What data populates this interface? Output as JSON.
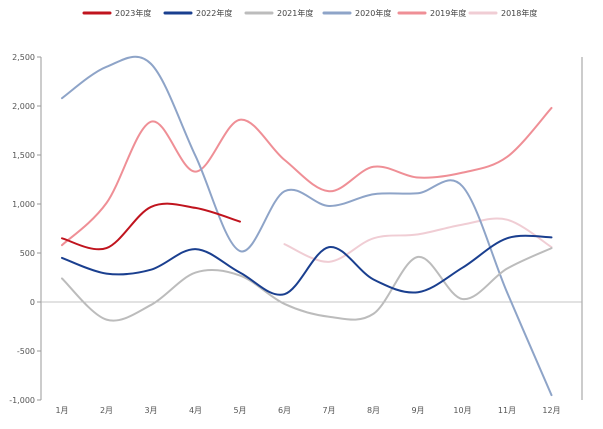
{
  "chart_data": {
    "type": "line",
    "categories": [
      "1月",
      "2月",
      "3月",
      "4月",
      "5月",
      "6月",
      "7月",
      "8月",
      "9月",
      "10月",
      "11月",
      "12月"
    ],
    "ylim": [
      -1000,
      2500
    ],
    "yticks": [
      -1000,
      -500,
      0,
      500,
      1000,
      1500,
      2000,
      2500
    ],
    "ytick_labels": [
      "-1,000",
      "-500",
      "0",
      "500",
      "1,000",
      "1,500",
      "2,000",
      "2,500"
    ],
    "legend_position": "top",
    "grid": false,
    "series": [
      {
        "name": "2023年度",
        "color": "#c0141e",
        "values": [
          650,
          550,
          970,
          960,
          820,
          null,
          null,
          null,
          null,
          null,
          null,
          null
        ]
      },
      {
        "name": "2022年度",
        "color": "#1a3f8f",
        "values": [
          450,
          290,
          330,
          540,
          300,
          80,
          560,
          230,
          100,
          350,
          650,
          660
        ]
      },
      {
        "name": "2021年度",
        "color": "#bcbcbc",
        "values": [
          240,
          -180,
          -30,
          300,
          270,
          -20,
          -150,
          -120,
          460,
          30,
          340,
          550
        ]
      },
      {
        "name": "2020年度",
        "color": "#8ea4c8",
        "values": [
          2080,
          2400,
          2430,
          1490,
          520,
          1130,
          980,
          1100,
          1110,
          1180,
          100,
          -950
        ]
      },
      {
        "name": "2019年度",
        "color": "#ef8f96",
        "values": [
          580,
          1010,
          1840,
          1330,
          1860,
          1450,
          1130,
          1380,
          1270,
          1320,
          1480,
          1980
        ]
      },
      {
        "name": "2018年度",
        "color": "#f0cdd4",
        "values": [
          null,
          null,
          null,
          null,
          null,
          590,
          410,
          650,
          690,
          790,
          840,
          560
        ]
      }
    ]
  }
}
